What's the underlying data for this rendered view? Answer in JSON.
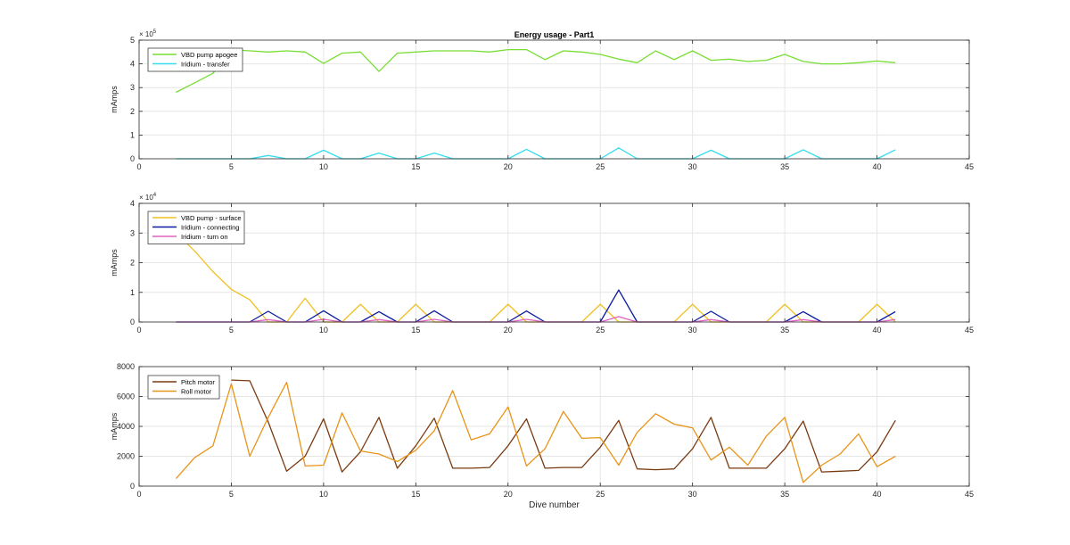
{
  "figure": {
    "background": "#ffffff",
    "axis_color": "#262626",
    "grid_color": "#e6e6e6"
  },
  "chart_data": [
    {
      "type": "line",
      "title": "Energy usage - Part1",
      "ylabel": "mAmps",
      "xlabel": "",
      "xlim": [
        0,
        45
      ],
      "ylim": [
        0,
        500000
      ],
      "y_exponent_label": "× 10^5",
      "y_exp": "5",
      "x_ticks": [
        0,
        5,
        10,
        15,
        20,
        25,
        30,
        35,
        40,
        45
      ],
      "y_ticks": [
        0,
        100000,
        200000,
        300000,
        400000,
        500000
      ],
      "y_tick_labels": [
        "0",
        "1",
        "2",
        "3",
        "4",
        "5"
      ],
      "grid": true,
      "legend_position": "top-left",
      "x": [
        2,
        3,
        4,
        5,
        6,
        7,
        8,
        9,
        10,
        11,
        12,
        13,
        14,
        15,
        16,
        17,
        18,
        19,
        20,
        21,
        22,
        23,
        24,
        25,
        26,
        27,
        28,
        29,
        30,
        31,
        32,
        33,
        34,
        35,
        36,
        37,
        38,
        39,
        40,
        41
      ],
      "series": [
        {
          "name": "VBD pump apogee",
          "color": "#77dd33",
          "values": [
            280000,
            320000,
            360000,
            460000,
            455000,
            450000,
            455000,
            450000,
            402000,
            445000,
            450000,
            368000,
            445000,
            450000,
            455000,
            455000,
            455000,
            450000,
            460000,
            460000,
            418000,
            455000,
            450000,
            440000,
            420000,
            405000,
            455000,
            418000,
            455000,
            415000,
            420000,
            410000,
            415000,
            440000,
            410000,
            400000,
            400000,
            405000,
            412000,
            405000
          ]
        },
        {
          "name": "Iridium - transfer",
          "color": "#33ddee",
          "values": [
            0,
            0,
            0,
            0,
            0,
            14000,
            0,
            0,
            36000,
            0,
            0,
            24000,
            0,
            0,
            24000,
            0,
            0,
            0,
            0,
            40000,
            0,
            0,
            0,
            0,
            46000,
            0,
            0,
            0,
            0,
            36000,
            0,
            0,
            0,
            0,
            38000,
            0,
            0,
            0,
            0,
            38000
          ]
        }
      ]
    },
    {
      "type": "line",
      "title": "",
      "ylabel": "mAmps",
      "xlabel": "",
      "xlim": [
        0,
        45
      ],
      "ylim": [
        0,
        40000
      ],
      "y_exponent_label": "× 10^4",
      "y_exp": "4",
      "x_ticks": [
        0,
        5,
        10,
        15,
        20,
        25,
        30,
        35,
        40,
        45
      ],
      "y_ticks": [
        0,
        10000,
        20000,
        30000,
        40000
      ],
      "y_tick_labels": [
        "0",
        "1",
        "2",
        "3",
        "4"
      ],
      "grid": true,
      "legend_position": "top-left",
      "x": [
        2,
        3,
        4,
        5,
        6,
        7,
        8,
        9,
        10,
        11,
        12,
        13,
        14,
        15,
        16,
        17,
        18,
        19,
        20,
        21,
        22,
        23,
        24,
        25,
        26,
        27,
        28,
        29,
        30,
        31,
        32,
        33,
        34,
        35,
        36,
        37,
        38,
        39,
        40,
        41
      ],
      "series": [
        {
          "name": "VBD pump - surface",
          "color": "#f0c020",
          "values": [
            30000,
            24000,
            17000,
            11000,
            7500,
            0,
            0,
            8000,
            0,
            0,
            6000,
            0,
            0,
            6000,
            0,
            0,
            0,
            0,
            6000,
            0,
            0,
            0,
            0,
            6000,
            0,
            0,
            0,
            0,
            6000,
            0,
            0,
            0,
            0,
            6000,
            0,
            0,
            0,
            0,
            6000,
            0
          ]
        },
        {
          "name": "Iridium - connecting",
          "color": "#0a1aa0",
          "values": [
            0,
            0,
            0,
            0,
            0,
            3600,
            0,
            0,
            3800,
            0,
            0,
            3500,
            0,
            0,
            3800,
            0,
            0,
            0,
            0,
            3700,
            0,
            0,
            0,
            0,
            10800,
            0,
            0,
            0,
            0,
            3600,
            0,
            0,
            0,
            0,
            3500,
            0,
            0,
            0,
            0,
            3500
          ]
        },
        {
          "name": "Iridium - turn on",
          "color": "#e060c0",
          "values": [
            0,
            0,
            0,
            0,
            0,
            800,
            0,
            0,
            900,
            0,
            0,
            800,
            0,
            0,
            900,
            0,
            0,
            0,
            0,
            900,
            0,
            0,
            0,
            0,
            1800,
            0,
            0,
            0,
            0,
            800,
            0,
            0,
            0,
            0,
            800,
            0,
            0,
            0,
            0,
            800
          ]
        }
      ]
    },
    {
      "type": "line",
      "title": "",
      "ylabel": "mAmps",
      "xlabel": "Dive number",
      "xlim": [
        0,
        45
      ],
      "ylim": [
        0,
        8000
      ],
      "y_exponent_label": "",
      "y_exp": "",
      "x_ticks": [
        0,
        5,
        10,
        15,
        20,
        25,
        30,
        35,
        40,
        45
      ],
      "y_ticks": [
        0,
        2000,
        4000,
        6000,
        8000
      ],
      "y_tick_labels": [
        "0",
        "2000",
        "4000",
        "6000",
        "8000"
      ],
      "grid": true,
      "legend_position": "top-left",
      "x": [
        2,
        3,
        4,
        5,
        6,
        7,
        8,
        9,
        10,
        11,
        12,
        13,
        14,
        15,
        16,
        17,
        18,
        19,
        20,
        21,
        22,
        23,
        24,
        25,
        26,
        27,
        28,
        29,
        30,
        31,
        32,
        33,
        34,
        35,
        36,
        37,
        38,
        39,
        40,
        41
      ],
      "series": [
        {
          "name": "Pitch motor",
          "color": "#7a3a10",
          "values": [
            null,
            null,
            null,
            7100,
            7050,
            4300,
            1000,
            2000,
            4500,
            950,
            2300,
            4600,
            1200,
            2700,
            4550,
            1200,
            1200,
            1250,
            2700,
            4500,
            1200,
            1250,
            1250,
            2600,
            4400,
            1150,
            1100,
            1150,
            2500,
            4600,
            1200,
            1200,
            1200,
            2500,
            4350,
            950,
            1000,
            1050,
            2300,
            4400
          ]
        },
        {
          "name": "Roll motor",
          "color": "#e89418",
          "values": [
            500,
            1900,
            2700,
            6850,
            2000,
            4600,
            6950,
            1350,
            1400,
            4900,
            2350,
            2150,
            1650,
            2400,
            3700,
            6400,
            3100,
            3500,
            5300,
            1350,
            2500,
            5000,
            3200,
            3250,
            1400,
            3600,
            4850,
            4150,
            3900,
            1750,
            2600,
            1400,
            3350,
            4600,
            250,
            1400,
            2150,
            3500,
            1300,
            2000
          ]
        }
      ]
    }
  ]
}
